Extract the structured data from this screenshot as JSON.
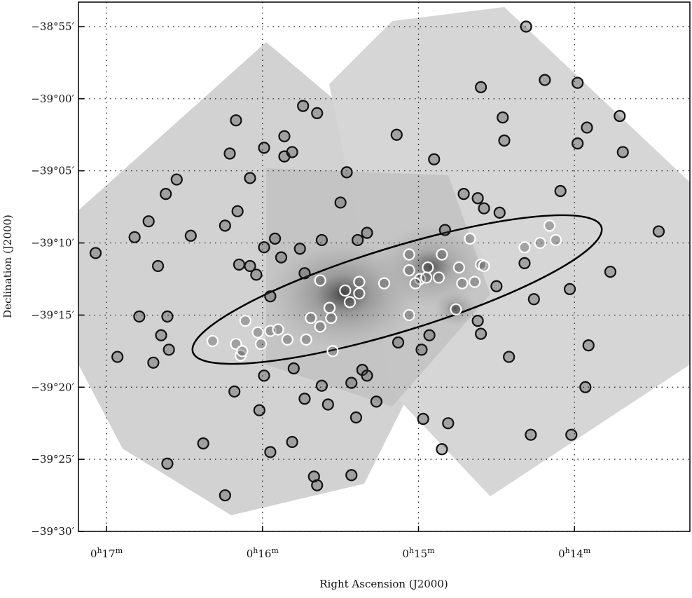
{
  "chart_data": {
    "type": "scatter",
    "x_label": "Right Ascension (J2000)",
    "y_label": "Declination (J2000)",
    "xlim": [
      17.18,
      13.26
    ],
    "ylim": [
      -2333.3,
      -2370
    ],
    "xticks": [
      {
        "value": 17,
        "label": "0h17m"
      },
      {
        "value": 16,
        "label": "0h16m"
      },
      {
        "value": 15,
        "label": "0h15m"
      },
      {
        "value": 14,
        "label": "0h14m"
      }
    ],
    "yticks": [
      {
        "value": -2335,
        "label": "−38°55′"
      },
      {
        "value": -2340,
        "label": "−39°00′"
      },
      {
        "value": -2345,
        "label": "−39°05′"
      },
      {
        "value": -2350,
        "label": "−39°10′"
      },
      {
        "value": -2355,
        "label": "−39°15′"
      },
      {
        "value": -2360,
        "label": "−39°20′"
      },
      {
        "value": -2365,
        "label": "−39°25′"
      },
      {
        "value": -2370,
        "label": "−39°30′"
      }
    ],
    "grid": true,
    "series": [
      {
        "color": "#111111",
        "x": [
          14.31,
          14.6,
          14.19,
          13.98,
          14.46,
          13.71,
          13.92,
          14.45,
          15.14,
          13.98,
          13.69,
          14.9,
          16.17,
          15.74,
          15.65,
          15.86,
          15.99,
          16.21,
          15.86,
          15.81,
          16.08,
          16.55,
          16.62,
          15.46,
          15.5,
          14.71,
          14.62,
          14.58,
          14.48,
          14.09,
          13.46,
          16.73,
          16.16,
          16.24,
          16.82,
          16.46,
          15.92,
          15.99,
          15.76,
          15.62,
          15.33,
          15.39,
          14.83,
          15.88,
          16.15,
          16.08,
          16.04,
          16.67,
          15.73,
          13.77,
          14.03,
          14.5,
          14.26,
          14.32,
          15.95,
          16.79,
          16.61,
          16.65,
          16.6,
          16.93,
          16.7,
          14.62,
          14.6,
          14.93,
          14.98,
          15.13,
          14.42,
          13.91,
          15.8,
          15.99,
          15.36,
          15.33,
          16.18,
          15.62,
          15.43,
          13.93,
          15.58,
          15.27,
          15.73,
          16.02,
          14.97,
          14.81,
          15.4,
          14.85,
          14.28,
          14.02,
          16.38,
          15.81,
          15.95,
          16.61,
          15.67,
          15.65,
          15.43,
          16.24,
          17.07
        ],
        "values": [
          -2335.0,
          -2339.2,
          -2338.7,
          -2338.9,
          -2341.3,
          -2341.2,
          -2342.0,
          -2342.9,
          -2342.5,
          -2343.1,
          -2343.7,
          -2344.2,
          -2341.5,
          -2340.5,
          -2341.0,
          -2342.6,
          -2343.4,
          -2343.8,
          -2344.0,
          -2343.7,
          -2345.5,
          -2345.6,
          -2346.6,
          -2345.1,
          -2347.2,
          -2346.6,
          -2346.9,
          -2347.6,
          -2347.9,
          -2346.4,
          -2349.2,
          -2348.5,
          -2347.8,
          -2348.8,
          -2349.6,
          -2349.5,
          -2349.7,
          -2350.3,
          -2350.4,
          -2349.8,
          -2349.3,
          -2349.8,
          -2349.1,
          -2351.0,
          -2351.5,
          -2351.6,
          -2352.2,
          -2351.6,
          -2352.1,
          -2352.0,
          -2353.2,
          -2353.0,
          -2353.9,
          -2351.4,
          -2353.7,
          -2355.1,
          -2355.1,
          -2356.4,
          -2357.4,
          -2357.9,
          -2358.3,
          -2355.4,
          -2356.3,
          -2356.4,
          -2357.4,
          -2356.9,
          -2357.9,
          -2357.1,
          -2358.7,
          -2359.2,
          -2358.8,
          -2359.2,
          -2360.3,
          -2359.9,
          -2359.7,
          -2360.0,
          -2361.2,
          -2361.0,
          -2360.8,
          -2361.6,
          -2362.2,
          -2362.5,
          -2362.1,
          -2364.3,
          -2363.3,
          -2363.3,
          -2363.9,
          -2363.8,
          -2364.5,
          -2365.3,
          -2366.2,
          -2366.8,
          -2366.1,
          -2367.5,
          -2350.7
        ]
      },
      {
        "color": "#ffffff",
        "x": [
          15.63,
          15.47,
          15.38,
          15.57,
          15.44,
          15.38,
          15.22,
          15.69,
          15.63,
          15.56,
          15.06,
          14.85,
          14.94,
          15.06,
          14.99,
          15.02,
          14.95,
          14.87,
          14.74,
          14.72,
          14.64,
          14.76,
          15.06,
          14.67,
          14.6,
          14.58,
          14.32,
          14.22,
          14.16,
          14.12,
          16.11,
          16.03,
          15.95,
          15.9,
          15.84,
          15.72,
          16.32,
          16.17,
          16.14,
          16.01,
          15.55,
          16.13
        ],
        "values": [
          -2352.6,
          -2353.3,
          -2352.7,
          -2354.5,
          -2354.1,
          -2353.5,
          -2352.8,
          -2355.2,
          -2355.8,
          -2355.2,
          -2350.8,
          -2350.8,
          -2351.7,
          -2351.9,
          -2352.5,
          -2352.8,
          -2352.4,
          -2352.4,
          -2351.7,
          -2352.8,
          -2352.7,
          -2354.6,
          -2355.0,
          -2349.7,
          -2351.5,
          -2351.6,
          -2350.3,
          -2350.0,
          -2348.8,
          -2349.8,
          -2355.4,
          -2356.2,
          -2356.1,
          -2356.0,
          -2356.7,
          -2356.7,
          -2356.8,
          -2357.0,
          -2357.8,
          -2357.0,
          -2357.5,
          -2357.5
        ]
      }
    ]
  }
}
